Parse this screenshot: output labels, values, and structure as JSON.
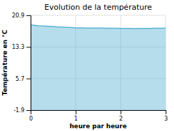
{
  "chart_data": {
    "type": "area",
    "title": "Evolution de la température",
    "x_label": "heure par heure",
    "y_label": "Température en °C",
    "color": "#5ab4d4",
    "grid": true,
    "xlim": [
      0,
      3
    ],
    "ylim": [
      -1.9,
      20.9
    ],
    "xticks": [
      0,
      1,
      2,
      3
    ],
    "yticks": [
      -1.9,
      5.7,
      13.3,
      20.9
    ],
    "x": [
      0.0,
      0.083,
      0.167,
      0.25,
      0.333,
      0.417,
      0.5,
      0.583,
      0.667,
      0.75,
      0.833,
      0.917,
      1.0,
      1.083,
      1.167,
      1.25,
      1.333,
      1.417,
      1.5,
      1.583,
      1.667,
      1.75,
      1.833,
      1.917,
      2.0,
      2.083,
      2.167,
      2.25,
      2.333,
      2.417,
      2.5,
      2.583,
      2.667,
      2.75,
      2.833,
      2.917,
      3.0
    ],
    "values": [
      18.6,
      18.5,
      18.4,
      18.35,
      18.3,
      18.25,
      18.2,
      18.15,
      18.1,
      18.05,
      18.0,
      17.95,
      17.9,
      17.88,
      17.87,
      17.86,
      17.85,
      17.84,
      17.83,
      17.82,
      17.81,
      17.8,
      17.79,
      17.78,
      17.77,
      17.76,
      17.75,
      17.74,
      17.73,
      17.74,
      17.75,
      17.76,
      17.77,
      17.78,
      17.79,
      17.8,
      17.82
    ]
  }
}
